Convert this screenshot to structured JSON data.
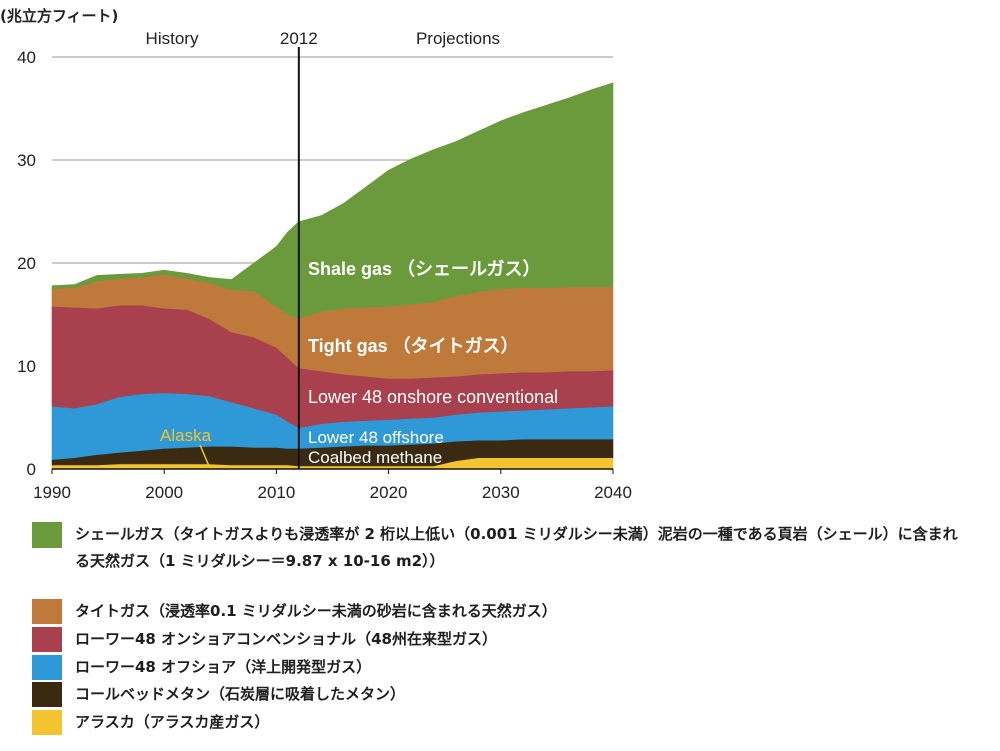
{
  "chart_data": {
    "type": "area",
    "stacked": true,
    "ylabel": "(兆立方フィート)",
    "xlim": [
      1990,
      2040
    ],
    "ylim": [
      0,
      40
    ],
    "xticks": [
      1990,
      2000,
      2010,
      2020,
      2030,
      2040
    ],
    "yticks": [
      0,
      10,
      20,
      30,
      40
    ],
    "grid": true,
    "legend_placement": "bottom",
    "annotations": {
      "history_label": "History",
      "projections_label": "Projections",
      "divider_label": "2012",
      "divider_year": 2012
    },
    "x": [
      1990,
      1992,
      1994,
      1996,
      1998,
      2000,
      2002,
      2004,
      2006,
      2008,
      2010,
      2011,
      2012,
      2014,
      2016,
      2018,
      2020,
      2022,
      2024,
      2026,
      2028,
      2030,
      2032,
      2034,
      2036,
      2038,
      2040
    ],
    "series": [
      {
        "name": "Shale gas （シェールガス）",
        "legend": "シェールガス（タイトガスよりも浸透率が 2 桁以上低い（0.001 ミリダルシー未満）泥岩の一種である頁岩（シェール）に含まれる天然ガス（1 ミリダルシー＝9.87 x 10-16 m2））",
        "color": "#6b9a3c",
        "values": [
          0.3,
          0.3,
          0.6,
          0.4,
          0.4,
          0.4,
          0.5,
          0.5,
          1.0,
          2.7,
          5.8,
          8.0,
          9.4,
          9.3,
          10.2,
          11.7,
          13.2,
          14.1,
          14.8,
          15.0,
          15.6,
          16.3,
          17.0,
          17.7,
          18.3,
          19.1,
          19.8
        ]
      },
      {
        "name": "Tight gas （タイトガス）",
        "legend": "タイトガス（浸透率0.1 ミリダルシー未満の砂岩に含まれる天然ガス）",
        "color": "#bf7a3b",
        "values": [
          1.7,
          1.9,
          2.6,
          2.6,
          2.7,
          3.3,
          3.0,
          3.5,
          4.1,
          4.5,
          4.0,
          4.2,
          4.8,
          5.8,
          6.4,
          6.7,
          7.0,
          7.2,
          7.3,
          7.8,
          8.0,
          8.2,
          8.2,
          8.2,
          8.2,
          8.2,
          8.1
        ]
      },
      {
        "name": "Lower 48 onshore conventional",
        "legend": "ローワー48 オンショアコンベンショナル（48州在来型ガス）",
        "color": "#a8404e",
        "values": [
          9.7,
          9.8,
          9.3,
          8.9,
          8.6,
          8.2,
          8.2,
          7.5,
          6.8,
          6.9,
          6.5,
          6.2,
          5.8,
          5.1,
          4.6,
          4.3,
          4.0,
          3.9,
          3.9,
          3.7,
          3.7,
          3.7,
          3.7,
          3.6,
          3.6,
          3.5,
          3.5
        ]
      },
      {
        "name": "Lower 48 offshore",
        "legend": "ローワー48 オフショア（洋上開発型ガス）",
        "color": "#2f98d6",
        "values": [
          5.2,
          4.8,
          4.9,
          5.4,
          5.5,
          5.4,
          5.2,
          4.9,
          4.3,
          3.8,
          3.2,
          2.6,
          2.0,
          2.3,
          2.4,
          2.4,
          2.5,
          2.5,
          2.5,
          2.6,
          2.7,
          2.8,
          2.8,
          2.9,
          3.0,
          3.1,
          3.2
        ]
      },
      {
        "name": "Coalbed methane",
        "legend": "コールベッドメタン（石炭層に吸着したメタン）",
        "color": "#3a2a12",
        "values": [
          0.5,
          0.7,
          1.0,
          1.1,
          1.3,
          1.5,
          1.6,
          1.7,
          1.8,
          1.7,
          1.7,
          1.6,
          1.7,
          1.8,
          1.9,
          2.0,
          2.0,
          2.1,
          2.2,
          1.9,
          1.7,
          1.7,
          1.8,
          1.8,
          1.8,
          1.8,
          1.8
        ]
      },
      {
        "name": "Alaska",
        "legend": "アラスカ（アラスカ産ガス）",
        "color": "#f4c430",
        "values": [
          0.4,
          0.4,
          0.4,
          0.5,
          0.5,
          0.5,
          0.5,
          0.5,
          0.4,
          0.4,
          0.4,
          0.4,
          0.3,
          0.3,
          0.3,
          0.3,
          0.3,
          0.3,
          0.3,
          0.8,
          1.1,
          1.1,
          1.1,
          1.1,
          1.1,
          1.1,
          1.1
        ]
      }
    ]
  }
}
